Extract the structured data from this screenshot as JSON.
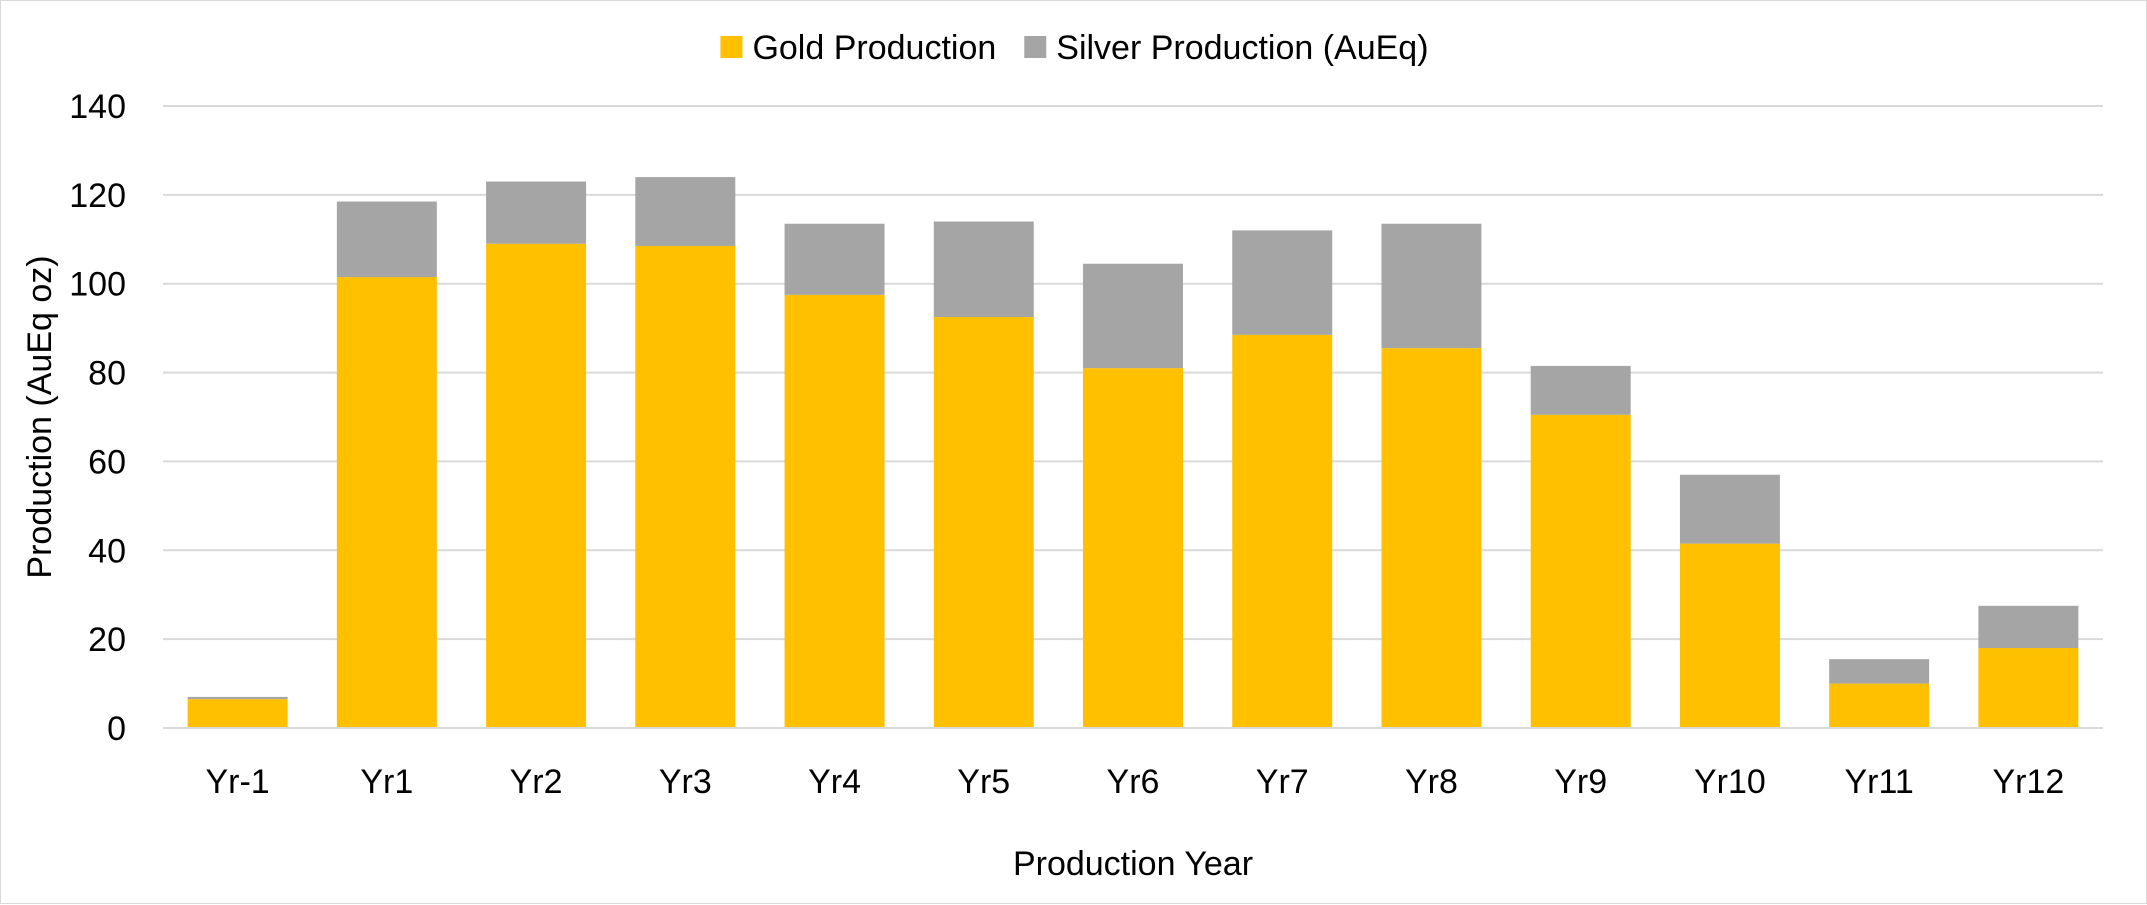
{
  "chart_data": {
    "type": "bar",
    "stacked": true,
    "title": "",
    "xlabel": "Production Year",
    "ylabel": "Production (AuEq oz)",
    "ylim": [
      0,
      140
    ],
    "yticks": [
      0,
      20,
      40,
      60,
      80,
      100,
      120,
      140
    ],
    "grid": true,
    "legend_position": "top",
    "categories": [
      "Yr-1",
      "Yr1",
      "Yr2",
      "Yr3",
      "Yr4",
      "Yr5",
      "Yr6",
      "Yr7",
      "Yr8",
      "Yr9",
      "Yr10",
      "Yr11",
      "Yr12"
    ],
    "series": [
      {
        "name": "Gold Production",
        "color": "#FFC000",
        "values": [
          6.5,
          101.5,
          109,
          108.5,
          97.5,
          92.5,
          81,
          88.5,
          85.5,
          70.5,
          41.5,
          10,
          18
        ]
      },
      {
        "name": "Silver Production (AuEq)",
        "color": "#A5A5A5",
        "values": [
          0.5,
          17,
          14,
          15.5,
          16,
          21.5,
          23.5,
          23.5,
          28,
          11,
          15.5,
          5.5,
          9.5
        ]
      }
    ]
  }
}
